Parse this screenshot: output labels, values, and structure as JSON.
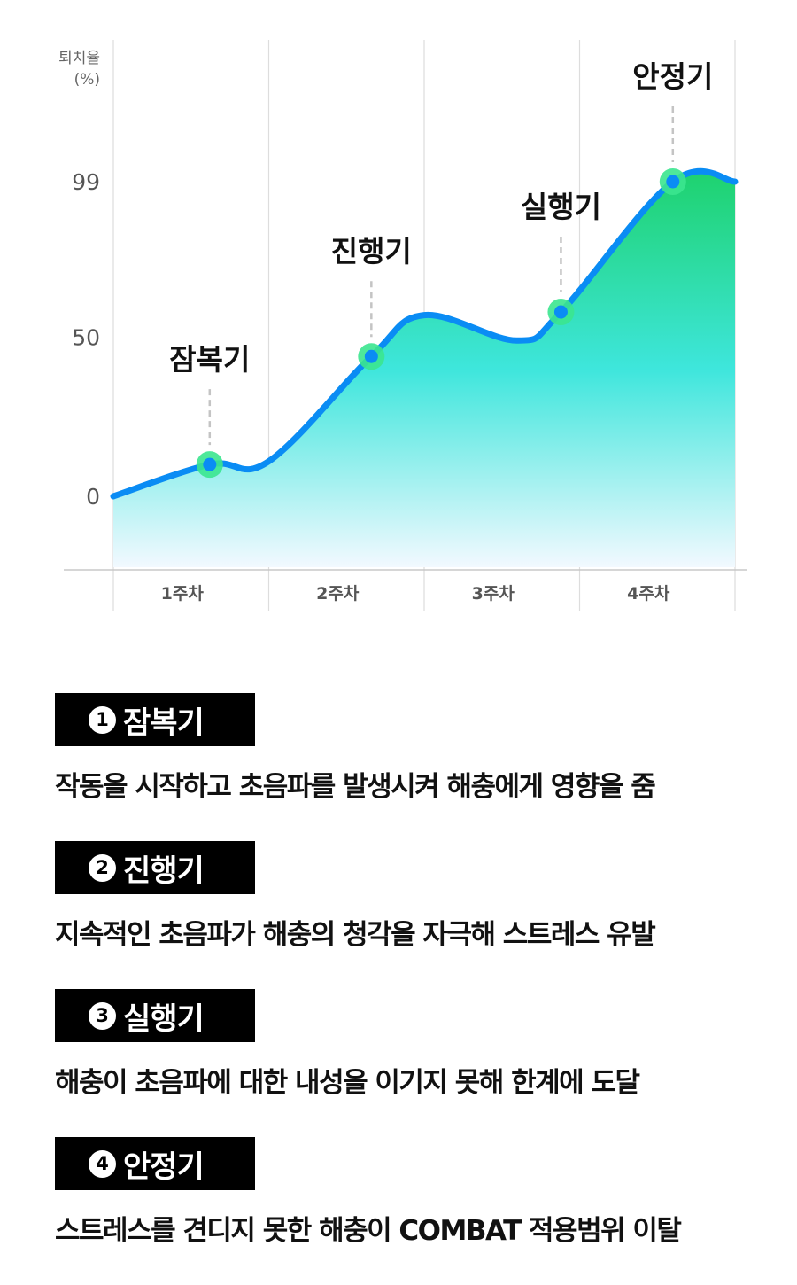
{
  "chart_data": {
    "type": "area",
    "ylabel": "퇴치율",
    "yunit": "(%)",
    "yticks": [
      "99",
      "50",
      "0"
    ],
    "ytick_values": [
      99,
      50,
      0
    ],
    "categories": [
      "1주차",
      "2주차",
      "3주차",
      "4주차"
    ],
    "points": [
      {
        "x": 0.0,
        "y": 0
      },
      {
        "x": 0.62,
        "y": 10
      },
      {
        "x": 1.0,
        "y": 11
      },
      {
        "x": 1.66,
        "y": 44
      },
      {
        "x": 2.0,
        "y": 57
      },
      {
        "x": 2.6,
        "y": 49
      },
      {
        "x": 2.88,
        "y": 58
      },
      {
        "x": 3.6,
        "y": 99
      },
      {
        "x": 4.0,
        "y": 99
      }
    ],
    "annotations": [
      {
        "label": "잠복기",
        "x": 0.62,
        "y": 10
      },
      {
        "label": "진행기",
        "x": 1.66,
        "y": 44
      },
      {
        "label": "실행기",
        "x": 2.88,
        "y": 58
      },
      {
        "label": "안정기",
        "x": 3.6,
        "y": 99
      }
    ],
    "line_color": "#0a8cf4",
    "fill_top_color": "#1ed26e",
    "fill_mid_color": "#3ee6dc",
    "fill_bottom_color": "#f2f9ff",
    "marker_outer_color": "#3be58f",
    "grid": true
  },
  "phases": [
    {
      "num": "1",
      "label": "잠복기",
      "desc": "작동을 시작하고 초음파를 발생시켜 해충에게 영향을 줌"
    },
    {
      "num": "2",
      "label": "진행기",
      "desc": "지속적인 초음파가 해충의 청각을 자극해 스트레스 유발"
    },
    {
      "num": "3",
      "label": "실행기",
      "desc": "해충이 초음파에 대한 내성을 이기지 못해 한계에 도달"
    },
    {
      "num": "4",
      "label": "안정기",
      "desc": "스트레스를 견디지 못한 해충이 COMBAT 적용범위 이탈"
    }
  ]
}
